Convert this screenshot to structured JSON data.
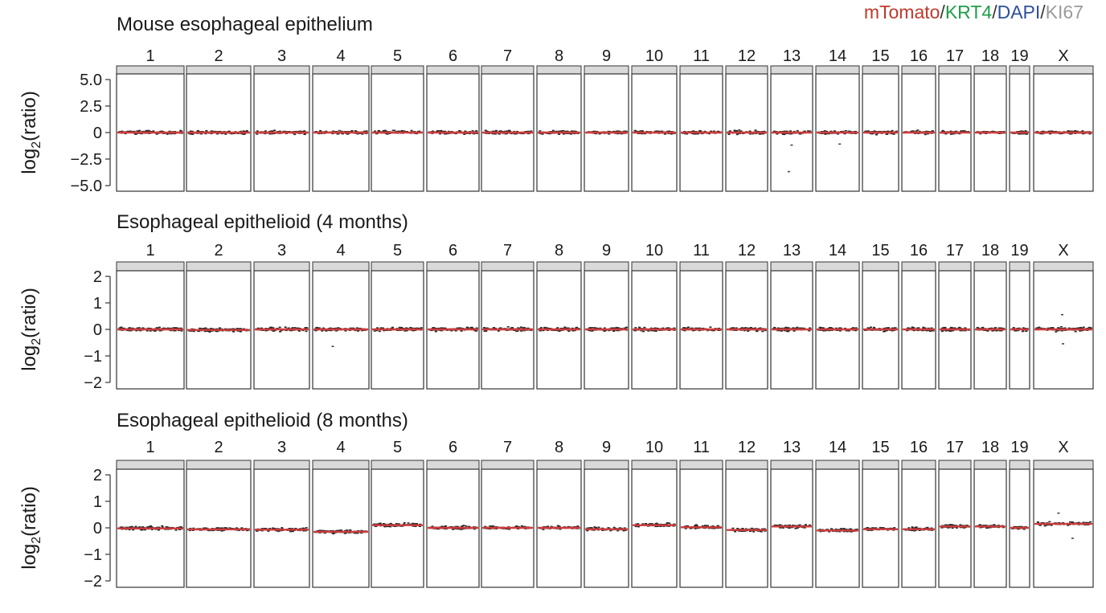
{
  "legend": {
    "items": [
      {
        "label": "mTomato",
        "color": "#c0392b"
      },
      {
        "label": "KRT4",
        "color": "#1e9e4a"
      },
      {
        "label": "DAPI",
        "color": "#2e4f9c"
      },
      {
        "label": "KI67",
        "color": "#9a9a9a"
      }
    ],
    "separator": "/"
  },
  "chart_data": [
    {
      "type": "scatter",
      "title": "Mouse esophageal epithelium",
      "ylabel": "log2(ratio)",
      "ylim": [
        -5.0,
        5.0
      ],
      "yticks": [
        5.0,
        2.5,
        0,
        -2.5,
        -5.0
      ],
      "ytick_labels": [
        "5.0",
        "2.5",
        "0",
        "−2.5",
        "−5.0"
      ],
      "chromosomes": [
        "1",
        "2",
        "3",
        "4",
        "5",
        "6",
        "7",
        "8",
        "9",
        "10",
        "11",
        "12",
        "13",
        "14",
        "15",
        "16",
        "17",
        "18",
        "19",
        "X"
      ],
      "segment_means": [
        0,
        0,
        0,
        0,
        0,
        0,
        0,
        0,
        0,
        0,
        0,
        0,
        0,
        0,
        0,
        0,
        0,
        0,
        0,
        0
      ],
      "noise": 0.2,
      "outliers": [
        {
          "chrom": "13",
          "value": -3.7
        },
        {
          "chrom": "13",
          "value": -1.2
        },
        {
          "chrom": "14",
          "value": -1.1
        }
      ]
    },
    {
      "type": "scatter",
      "title": "Esophageal epithelioid (4 months)",
      "ylabel": "log2(ratio)",
      "ylim": [
        -2,
        2
      ],
      "yticks": [
        2,
        1,
        0,
        -1,
        -2
      ],
      "ytick_labels": [
        "2",
        "1",
        "0",
        "−1",
        "−2"
      ],
      "chromosomes": [
        "1",
        "2",
        "3",
        "4",
        "5",
        "6",
        "7",
        "8",
        "9",
        "10",
        "11",
        "12",
        "13",
        "14",
        "15",
        "16",
        "17",
        "18",
        "19",
        "X"
      ],
      "segment_means": [
        0,
        -0.02,
        0,
        0,
        0,
        0,
        0,
        0,
        0,
        0,
        0,
        0,
        0,
        0,
        0,
        0,
        0,
        0,
        0,
        0
      ],
      "noise": 0.09,
      "outliers": [
        {
          "chrom": "4",
          "value": -0.65
        },
        {
          "chrom": "X",
          "value": -0.55
        },
        {
          "chrom": "X",
          "value": 0.55
        }
      ]
    },
    {
      "type": "scatter",
      "title": "Esophageal epithelioid (8 months)",
      "ylabel": "log2(ratio)",
      "ylim": [
        -2,
        2
      ],
      "yticks": [
        2,
        1,
        0,
        -1,
        -2
      ],
      "ytick_labels": [
        "2",
        "1",
        "0",
        "−1",
        "−2"
      ],
      "chromosomes": [
        "1",
        "2",
        "3",
        "4",
        "5",
        "6",
        "7",
        "8",
        "9",
        "10",
        "11",
        "12",
        "13",
        "14",
        "15",
        "16",
        "17",
        "18",
        "19",
        "X"
      ],
      "segment_means": [
        -0.02,
        -0.06,
        -0.07,
        -0.15,
        0.1,
        0,
        0,
        0,
        -0.05,
        0.1,
        0.02,
        -0.08,
        0.05,
        -0.1,
        -0.05,
        -0.05,
        0.05,
        0.05,
        0,
        0.15
      ],
      "noise": 0.08,
      "outliers": [
        {
          "chrom": "X",
          "value": 0.55
        },
        {
          "chrom": "X",
          "value": -0.4
        }
      ]
    }
  ]
}
